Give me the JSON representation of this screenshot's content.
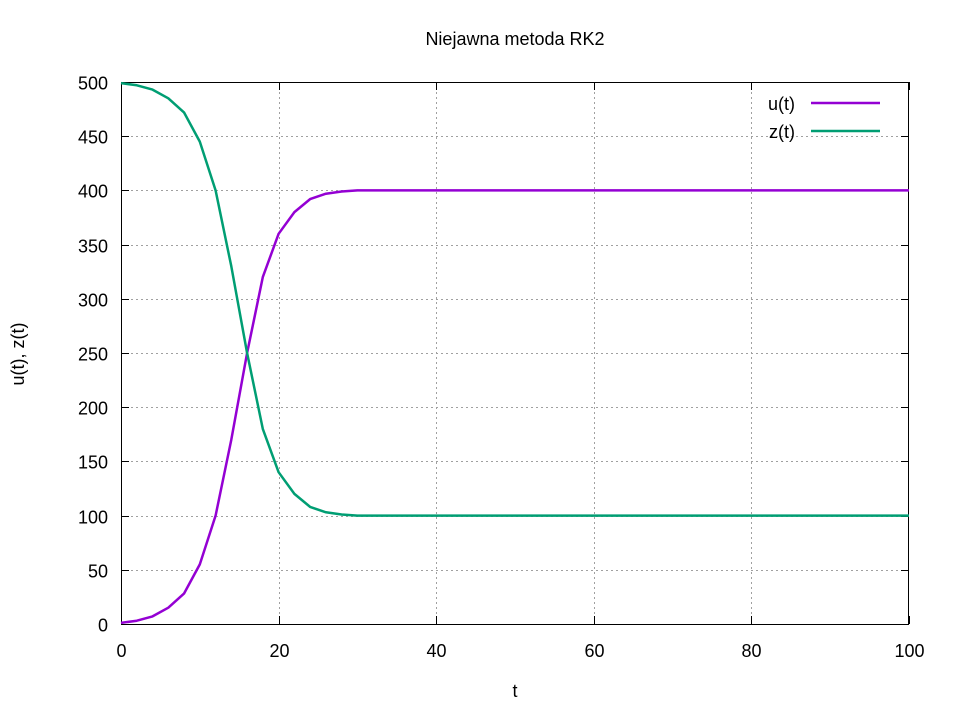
{
  "chart_data": {
    "type": "line",
    "title": "Niejawna metoda RK2",
    "xlabel": "t",
    "ylabel": "u(t), z(t)",
    "xlim": [
      0,
      100
    ],
    "ylim": [
      0,
      500
    ],
    "xticks": [
      0,
      20,
      40,
      60,
      80,
      100
    ],
    "yticks": [
      0,
      50,
      100,
      150,
      200,
      250,
      300,
      350,
      400,
      450,
      500
    ],
    "grid": true,
    "legend_position": "top-right",
    "series": [
      {
        "name": "u(t)",
        "color": "#9400d3",
        "x": [
          0,
          2,
          4,
          6,
          8,
          10,
          12,
          14,
          16,
          18,
          20,
          22,
          24,
          26,
          28,
          30,
          35,
          40,
          50,
          60,
          70,
          80,
          90,
          100
        ],
        "y": [
          1,
          3,
          7,
          15,
          28,
          55,
          100,
          170,
          250,
          320,
          360,
          380,
          392,
          397,
          399,
          400,
          400,
          400,
          400,
          400,
          400,
          400,
          400,
          400
        ]
      },
      {
        "name": "z(t)",
        "color": "#009e73",
        "x": [
          0,
          2,
          4,
          6,
          8,
          10,
          12,
          14,
          16,
          18,
          20,
          22,
          24,
          26,
          28,
          30,
          35,
          40,
          50,
          60,
          70,
          80,
          90,
          100
        ],
        "y": [
          499,
          497,
          493,
          485,
          472,
          445,
          400,
          330,
          250,
          180,
          140,
          120,
          108,
          103,
          101,
          100,
          100,
          100,
          100,
          100,
          100,
          100,
          100,
          100
        ]
      }
    ]
  }
}
